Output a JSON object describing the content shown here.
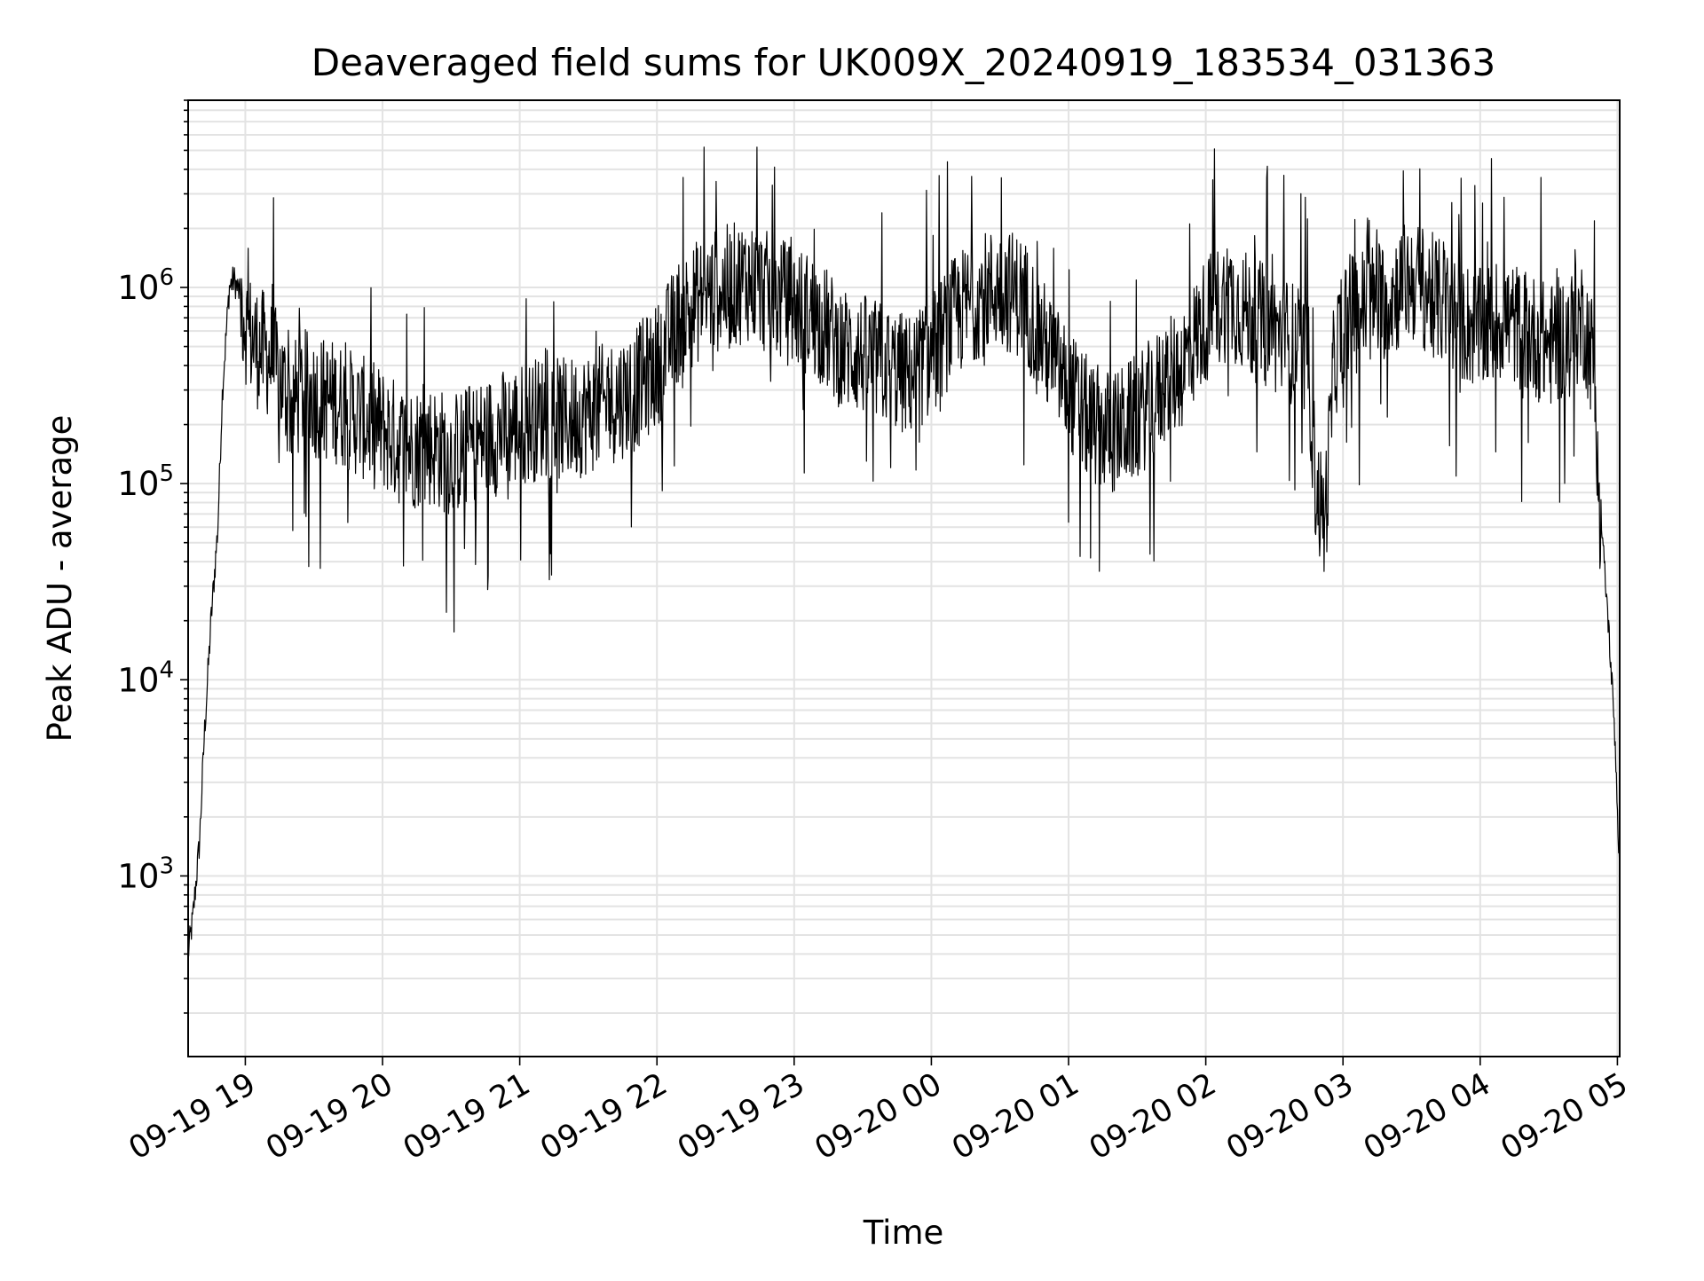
{
  "chart_data": {
    "type": "line",
    "title": "Deaveraged field sums for UK009X_20240919_183534_031363",
    "xlabel": "Time",
    "ylabel": "Peak ADU - average",
    "y_scale": "log",
    "ylim": [
      120,
      9000000
    ],
    "xlim": [
      "2024-09-19 18:35",
      "2024-09-20 05:01"
    ],
    "grid": true,
    "line_color": "#000000",
    "x_tick_labels": [
      "09-19 19",
      "09-19 20",
      "09-19 21",
      "09-19 22",
      "09-19 23",
      "09-20 00",
      "09-20 01",
      "09-20 02",
      "09-20 03",
      "09-20 04",
      "09-20 05"
    ],
    "x_tick_values": [
      "2024-09-19 19:00",
      "2024-09-19 20:00",
      "2024-09-19 21:00",
      "2024-09-19 22:00",
      "2024-09-19 23:00",
      "2024-09-20 00:00",
      "2024-09-20 01:00",
      "2024-09-20 02:00",
      "2024-09-20 03:00",
      "2024-09-20 04:00",
      "2024-09-20 05:00"
    ],
    "y_ticks": [
      {
        "base": "10",
        "exp": "3",
        "value": 1000
      },
      {
        "base": "10",
        "exp": "4",
        "value": 10000
      },
      {
        "base": "10",
        "exp": "5",
        "value": 100000
      },
      {
        "base": "10",
        "exp": "6",
        "value": 1000000
      }
    ],
    "series": [
      {
        "x": [
          "2024-09-19 18:35",
          "2024-09-19 18:37",
          "2024-09-19 18:40",
          "2024-09-19 18:42",
          "2024-09-19 18:45",
          "2024-09-19 18:48",
          "2024-09-19 18:50",
          "2024-09-19 18:53",
          "2024-09-19 18:55",
          "2024-09-19 18:58",
          "2024-09-19 19:01",
          "2024-09-19 19:05",
          "2024-09-19 19:10",
          "2024-09-19 19:15",
          "2024-09-19 19:20",
          "2024-09-19 19:25",
          "2024-09-19 19:30",
          "2024-09-19 19:40",
          "2024-09-19 19:50",
          "2024-09-19 20:00",
          "2024-09-19 20:10",
          "2024-09-19 20:20",
          "2024-09-19 20:30",
          "2024-09-19 20:40",
          "2024-09-19 20:50",
          "2024-09-19 21:00",
          "2024-09-19 21:10",
          "2024-09-19 21:20",
          "2024-09-19 21:30",
          "2024-09-19 21:40",
          "2024-09-19 21:50",
          "2024-09-19 22:00",
          "2024-09-19 22:10",
          "2024-09-19 22:20",
          "2024-09-19 22:30",
          "2024-09-19 22:40",
          "2024-09-19 22:50",
          "2024-09-19 23:00",
          "2024-09-19 23:10",
          "2024-09-19 23:20",
          "2024-09-19 23:30",
          "2024-09-19 23:40",
          "2024-09-19 23:50",
          "2024-09-20 00:00",
          "2024-09-20 00:10",
          "2024-09-20 00:20",
          "2024-09-20 00:30",
          "2024-09-20 00:40",
          "2024-09-20 00:50",
          "2024-09-20 01:00",
          "2024-09-20 01:10",
          "2024-09-20 01:20",
          "2024-09-20 01:30",
          "2024-09-20 01:40",
          "2024-09-20 01:50",
          "2024-09-20 02:00",
          "2024-09-20 02:10",
          "2024-09-20 02:20",
          "2024-09-20 02:30",
          "2024-09-20 02:40",
          "2024-09-20 02:45",
          "2024-09-20 02:48",
          "2024-09-20 02:52",
          "2024-09-20 02:56",
          "2024-09-20 03:00",
          "2024-09-20 03:10",
          "2024-09-20 03:20",
          "2024-09-20 03:30",
          "2024-09-20 03:40",
          "2024-09-20 03:50",
          "2024-09-20 04:00",
          "2024-09-20 04:10",
          "2024-09-20 04:20",
          "2024-09-20 04:30",
          "2024-09-20 04:40",
          "2024-09-20 04:45",
          "2024-09-20 04:50",
          "2024-09-20 04:53",
          "2024-09-20 04:56",
          "2024-09-20 04:59",
          "2024-09-20 05:01"
        ],
        "values": [
          400,
          600,
          1500,
          5000,
          20000,
          60000,
          300000,
          1000000,
          1100000,
          900000,
          600000,
          500000,
          450000,
          350000,
          250000,
          300000,
          280000,
          260000,
          220000,
          190000,
          150000,
          160000,
          140000,
          160000,
          180000,
          200000,
          220000,
          210000,
          230000,
          260000,
          300000,
          400000,
          700000,
          900000,
          1000000,
          1100000,
          900000,
          800000,
          700000,
          500000,
          450000,
          400000,
          350000,
          450000,
          700000,
          900000,
          1000000,
          900000,
          500000,
          300000,
          200000,
          180000,
          220000,
          300000,
          400000,
          700000,
          900000,
          700000,
          600000,
          500000,
          400000,
          100000,
          60000,
          400000,
          700000,
          800000,
          900000,
          1100000,
          900000,
          700000,
          600000,
          700000,
          600000,
          500000,
          600000,
          700000,
          400000,
          60000,
          20000,
          5000,
          1000
        ]
      }
    ]
  }
}
